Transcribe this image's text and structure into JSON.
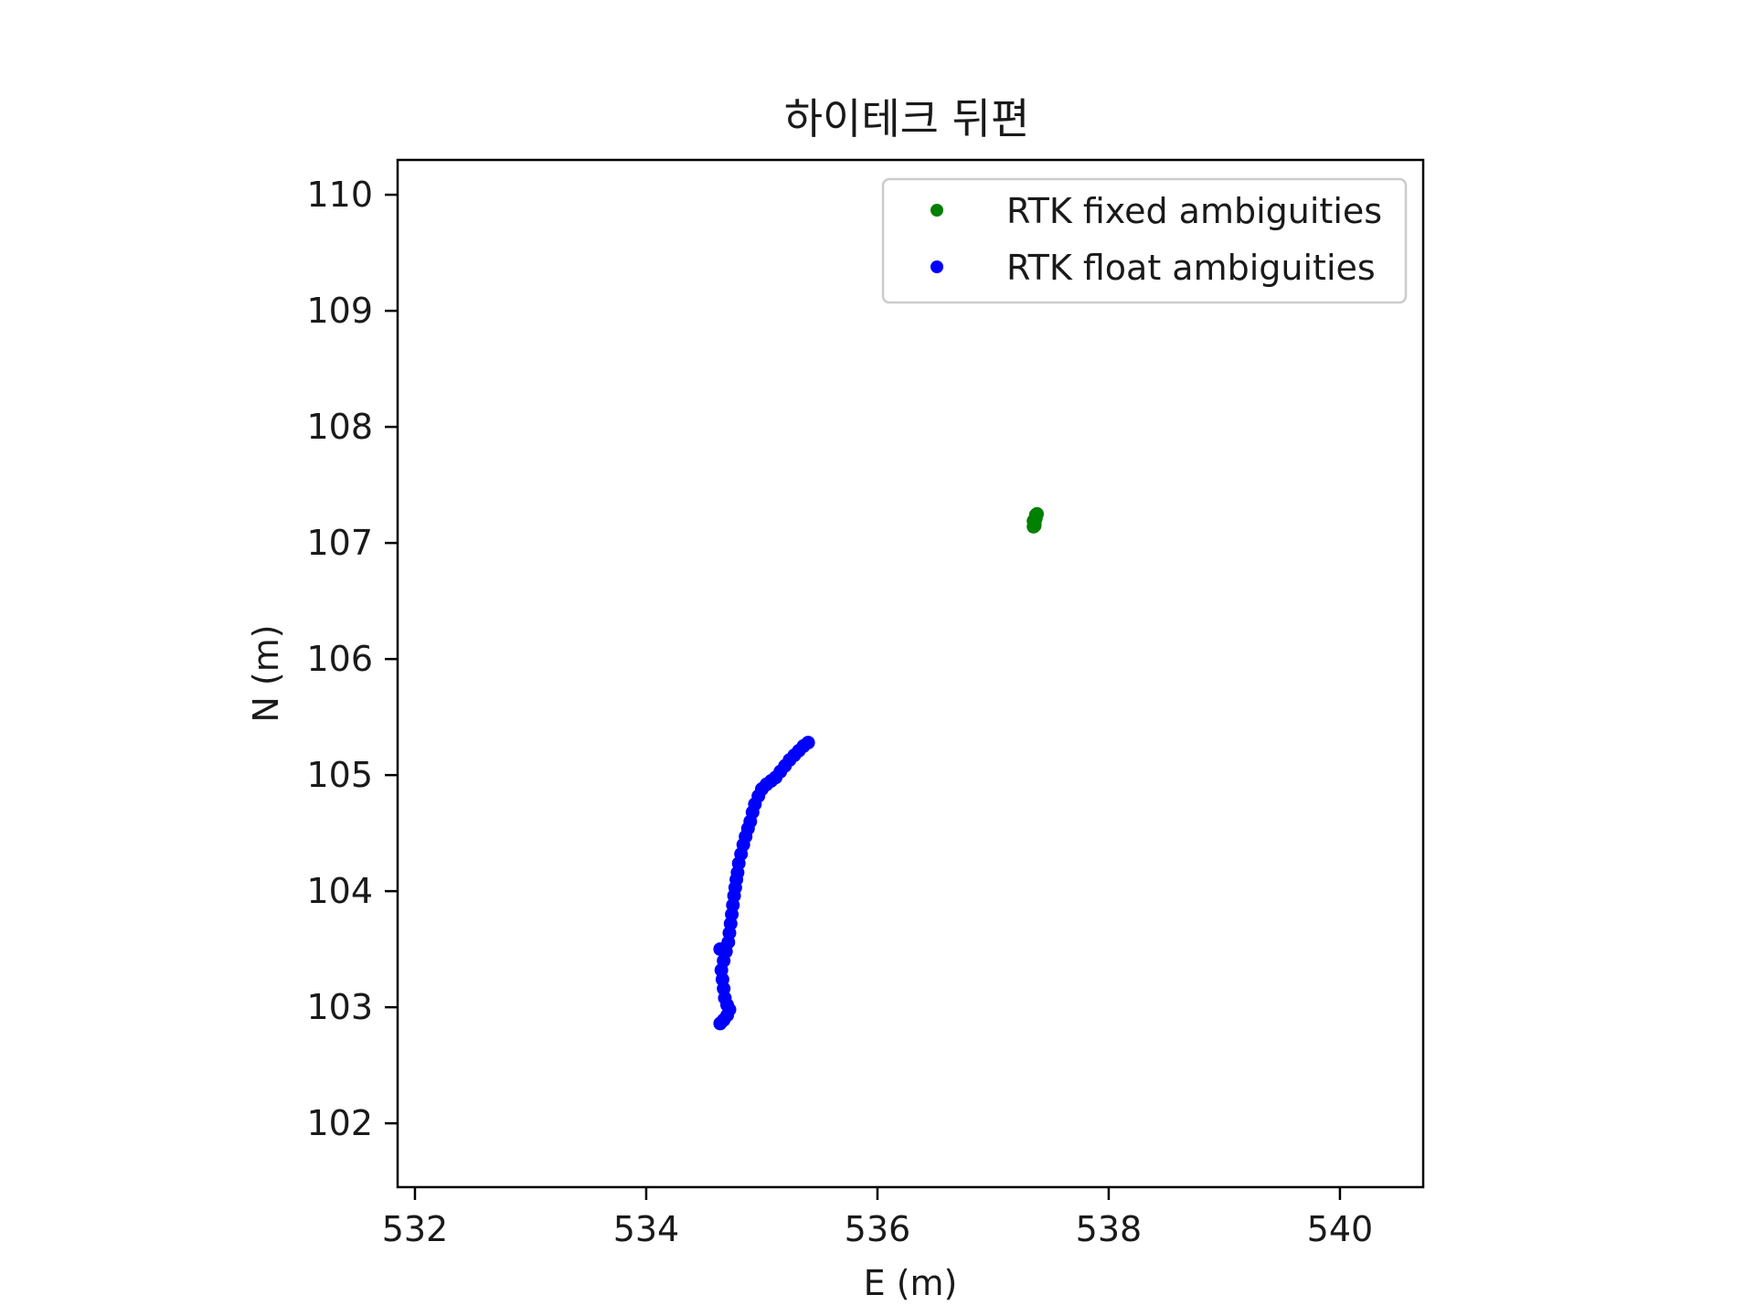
{
  "chart_data": {
    "type": "scatter",
    "title": "하이테크 뒤편",
    "xlabel": "E (m)",
    "ylabel": "N (m)",
    "xlim": [
      531.85,
      540.72
    ],
    "ylim": [
      101.45,
      110.3
    ],
    "xticks": [
      532,
      534,
      536,
      538,
      540
    ],
    "yticks": [
      102,
      103,
      104,
      105,
      106,
      107,
      108,
      109,
      110
    ],
    "grid": false,
    "legend_position": "top-right",
    "series": [
      {
        "name": "RTK fixed ambiguities",
        "color": "#008000",
        "points": [
          [
            537.35,
            107.14
          ],
          [
            537.36,
            107.16
          ],
          [
            537.36,
            107.18
          ],
          [
            537.36,
            107.2
          ],
          [
            537.37,
            107.22
          ],
          [
            537.37,
            107.24
          ],
          [
            537.38,
            107.25
          ],
          [
            537.37,
            107.21
          ],
          [
            537.36,
            107.15
          ],
          [
            537.35,
            107.19
          ]
        ]
      },
      {
        "name": "RTK float ambiguities",
        "color": "#0000ff",
        "points": [
          [
            535.4,
            105.28
          ],
          [
            535.36,
            105.25
          ],
          [
            535.32,
            105.21
          ],
          [
            535.28,
            105.17
          ],
          [
            535.24,
            105.13
          ],
          [
            535.2,
            105.08
          ],
          [
            535.16,
            105.03
          ],
          [
            535.12,
            104.98
          ],
          [
            535.08,
            104.95
          ],
          [
            535.04,
            104.92
          ],
          [
            535.0,
            104.88
          ],
          [
            534.97,
            104.82
          ],
          [
            534.94,
            104.75
          ],
          [
            534.92,
            104.68
          ],
          [
            534.9,
            104.6
          ],
          [
            534.88,
            104.54
          ],
          [
            534.86,
            104.47
          ],
          [
            534.84,
            104.4
          ],
          [
            534.82,
            104.32
          ],
          [
            534.8,
            104.24
          ],
          [
            534.79,
            104.16
          ],
          [
            534.78,
            104.1
          ],
          [
            534.77,
            104.03
          ],
          [
            534.76,
            103.96
          ],
          [
            534.75,
            103.88
          ],
          [
            534.74,
            103.8
          ],
          [
            534.73,
            103.72
          ],
          [
            534.72,
            103.64
          ],
          [
            534.71,
            103.56
          ],
          [
            534.69,
            103.48
          ],
          [
            534.67,
            103.4
          ],
          [
            534.65,
            103.32
          ],
          [
            534.66,
            103.24
          ],
          [
            534.67,
            103.16
          ],
          [
            534.68,
            103.08
          ],
          [
            534.7,
            103.02
          ],
          [
            534.72,
            102.98
          ],
          [
            534.7,
            102.93
          ],
          [
            534.67,
            102.89
          ],
          [
            534.64,
            102.86
          ],
          [
            534.64,
            103.5
          ]
        ]
      }
    ]
  }
}
